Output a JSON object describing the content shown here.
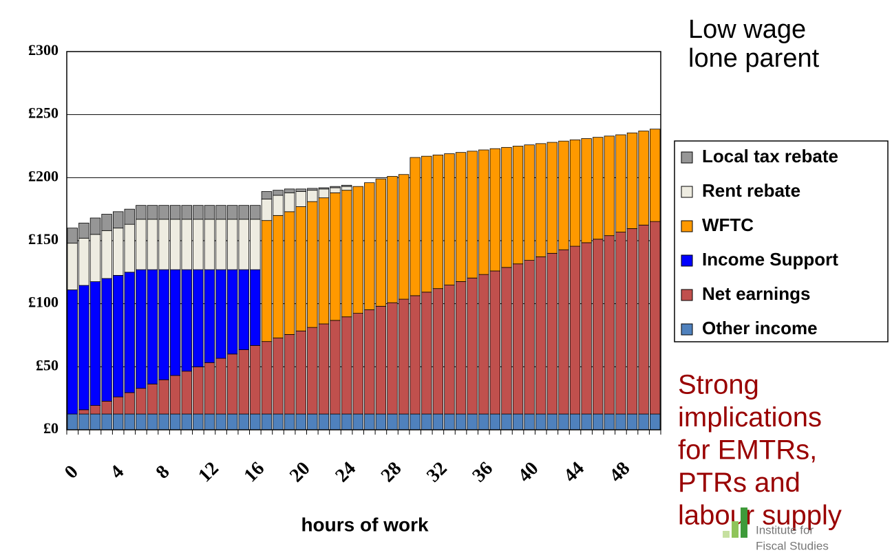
{
  "chart_data": {
    "type": "stacked_bar",
    "title": [
      "Low wage",
      "lone parent"
    ],
    "annotation": [
      "Strong",
      "implications",
      "for EMTRs,",
      "PTRs and",
      "labour supply"
    ],
    "logo": [
      "Institute for",
      "Fiscal Studies"
    ],
    "x_label": "hours of work",
    "categories": [
      "0",
      null,
      null,
      null,
      "4",
      null,
      null,
      null,
      "8",
      null,
      null,
      null,
      "12",
      null,
      null,
      null,
      "16",
      null,
      null,
      null,
      "20",
      null,
      null,
      null,
      "24",
      null,
      null,
      null,
      "28",
      null,
      null,
      null,
      "32",
      null,
      null,
      null,
      "36",
      null,
      null,
      null,
      "40",
      null,
      null,
      null,
      "44",
      null,
      null,
      null,
      "48",
      null,
      null,
      null
    ],
    "ylim": [
      0,
      300
    ],
    "yticks": [
      {
        "value": 0,
        "label": "£0"
      },
      {
        "value": 50,
        "label": "£50"
      },
      {
        "value": 100,
        "label": "£100"
      },
      {
        "value": 150,
        "label": "£150"
      },
      {
        "value": 200,
        "label": "£200"
      },
      {
        "value": 250,
        "label": "£250"
      },
      {
        "value": 300,
        "label": "£300"
      }
    ],
    "grid": true,
    "legend": "right",
    "series": [
      {
        "name": "Other income",
        "color": "#4f81bd",
        "values": [
          12.5,
          12.5,
          12.5,
          12.5,
          12.5,
          12.5,
          12.5,
          12.5,
          12.5,
          12.5,
          12.5,
          12.5,
          12.5,
          12.5,
          12.5,
          12.5,
          12.5,
          12.5,
          12.5,
          12.5,
          12.5,
          12.5,
          12.5,
          12.5,
          12.5,
          12.5,
          12.5,
          12.5,
          12.5,
          12.5,
          12.5,
          12.5,
          12.5,
          12.5,
          12.5,
          12.5,
          12.5,
          12.5,
          12.5,
          12.5,
          12.5,
          12.5,
          12.5,
          12.5,
          12.5,
          12.5,
          12.5,
          12.5,
          12.5,
          12.5,
          12.5,
          12.5
        ]
      },
      {
        "name": "Net earnings",
        "color": "#c0504d",
        "values": [
          0,
          3.4,
          6.8,
          10.2,
          13.6,
          17,
          20.4,
          23.8,
          27.2,
          30.6,
          34,
          37.4,
          40.8,
          44.2,
          47.6,
          51,
          54.4,
          57.5,
          60.3,
          63.1,
          65.9,
          68.7,
          71.5,
          74.3,
          77.1,
          79.9,
          82.7,
          85.5,
          88.3,
          91.1,
          93.9,
          96.7,
          99.5,
          102.3,
          105.1,
          107.9,
          110.7,
          113.5,
          116.3,
          119.1,
          121.9,
          124.7,
          127.5,
          130.3,
          133.1,
          135.9,
          138.7,
          141.5,
          144.3,
          147.1,
          149.9,
          152.7
        ]
      },
      {
        "name": "Income Support",
        "color": "#0000ff",
        "values": [
          98.5,
          98.6,
          98.2,
          97.3,
          96.4,
          95.5,
          94.1,
          90.7,
          87.3,
          83.9,
          80.5,
          77.1,
          73.7,
          70.3,
          66.9,
          63.5,
          60.1,
          0,
          0,
          0,
          0,
          0,
          0,
          0,
          0,
          0,
          0,
          0,
          0,
          0,
          0,
          0,
          0,
          0,
          0,
          0,
          0,
          0,
          0,
          0,
          0,
          0,
          0,
          0,
          0,
          0,
          0,
          0,
          0,
          0,
          0,
          0
        ]
      },
      {
        "name": "WFTC",
        "color": "#ff9900",
        "values": [
          0,
          0,
          0,
          0,
          0,
          0,
          0,
          0,
          0,
          0,
          0,
          0,
          0,
          0,
          0,
          0,
          0,
          96,
          97.2,
          97.4,
          98.6,
          99.8,
          100,
          101.2,
          100.4,
          100.6,
          100.8,
          101,
          100.2,
          98.9,
          109.6,
          107.8,
          106,
          104.2,
          102.4,
          100.6,
          98.8,
          97,
          95.2,
          93.4,
          91.6,
          89.8,
          88,
          86.2,
          84.4,
          82.6,
          80.8,
          79,
          77.2,
          75.9,
          74.6,
          73.3
        ]
      },
      {
        "name": "Rent rebate",
        "color": "#eeece1",
        "values": [
          37,
          37.5,
          37.5,
          38,
          37.5,
          38,
          40,
          40,
          40,
          40,
          40,
          40,
          40,
          40,
          40,
          40,
          40,
          17,
          16,
          15,
          12,
          9,
          7,
          4,
          3,
          0,
          0,
          0,
          0,
          0,
          0,
          0,
          0,
          0,
          0,
          0,
          0,
          0,
          0,
          0,
          0,
          0,
          0,
          0,
          0,
          0,
          0,
          0,
          0,
          0,
          0,
          0
        ]
      },
      {
        "name": "Local tax rebate",
        "color": "#969696",
        "values": [
          12,
          12,
          13,
          13,
          13,
          12,
          11,
          11,
          11,
          11,
          11,
          11,
          11,
          11,
          11,
          11,
          11,
          6,
          4,
          3,
          2,
          1.5,
          1,
          1,
          1,
          0,
          0,
          0,
          0,
          0,
          0,
          0,
          0,
          0,
          0,
          0,
          0,
          0,
          0,
          0,
          0,
          0,
          0,
          0,
          0,
          0,
          0,
          0,
          0,
          0,
          0,
          0
        ]
      }
    ]
  }
}
